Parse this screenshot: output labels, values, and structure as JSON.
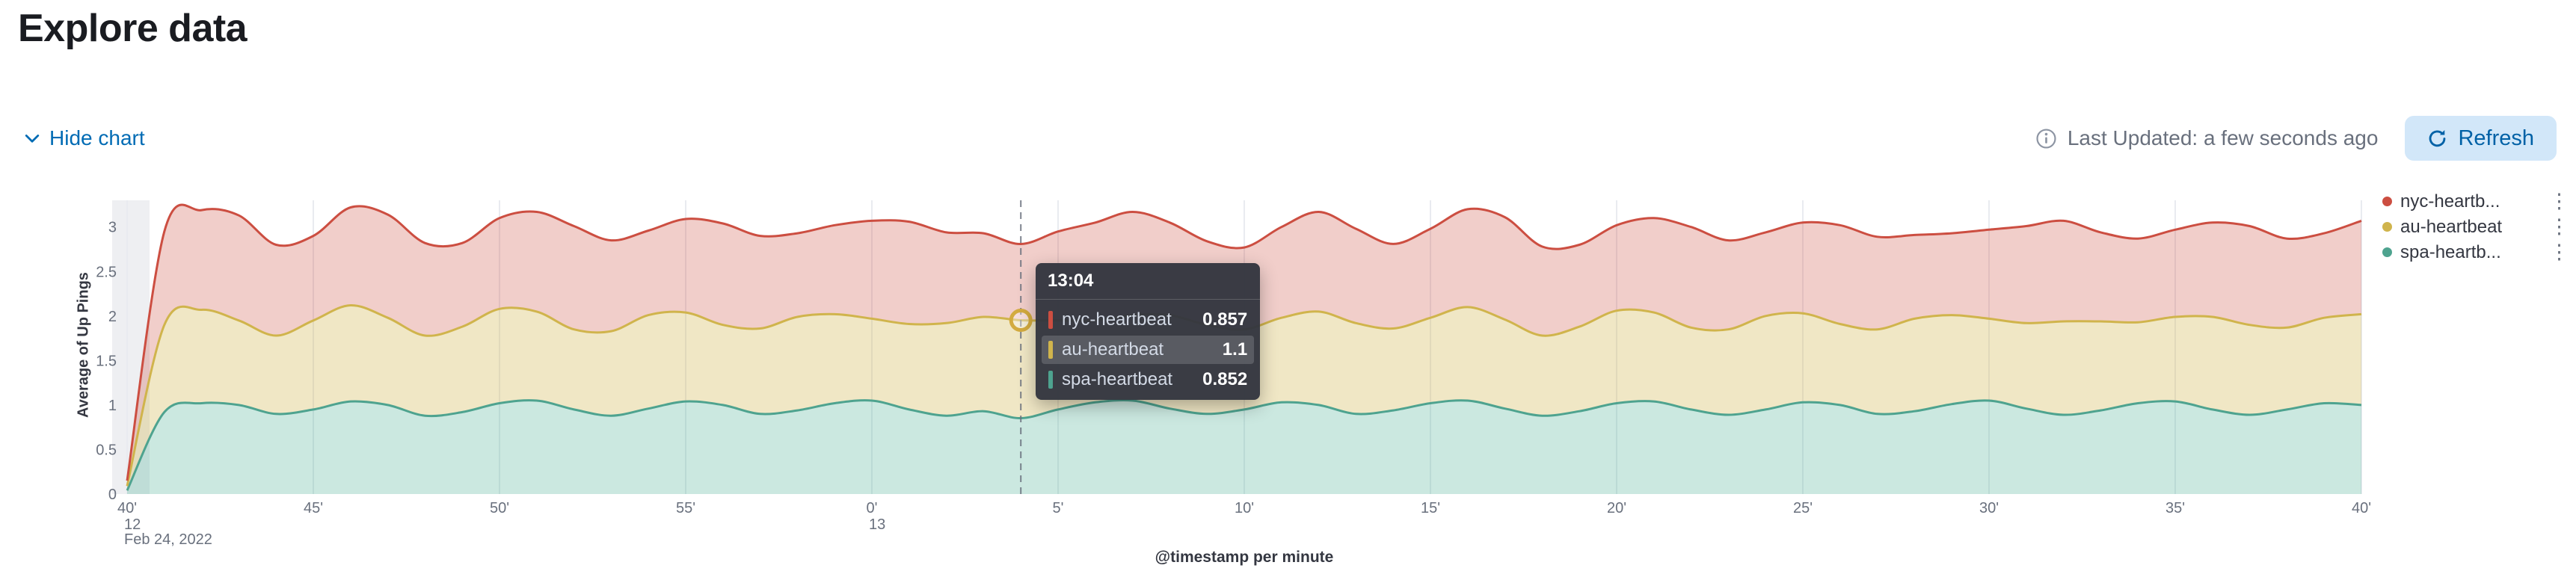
{
  "page": {
    "title": "Explore data"
  },
  "toolbar": {
    "hide_chart_label": "Hide chart",
    "last_updated": "Last Updated: a few seconds ago",
    "refresh_label": "Refresh"
  },
  "legend": {
    "menu_icon": "⋮",
    "items": [
      {
        "label": "nyc-heartb...",
        "color": "#cc4e41"
      },
      {
        "label": "au-heartbeat",
        "color": "#d0b44c"
      },
      {
        "label": "spa-heartb...",
        "color": "#4ea38f"
      }
    ]
  },
  "tooltip": {
    "header": "13:04",
    "rows": [
      {
        "label": "nyc-heartbeat",
        "value": "0.857",
        "color": "#cc4e41",
        "highlight": false
      },
      {
        "label": "au-heartbeat",
        "value": "1.1",
        "color": "#d0b44c",
        "highlight": true
      },
      {
        "label": "spa-heartbeat",
        "value": "0.852",
        "color": "#4ea38f",
        "highlight": false
      }
    ]
  },
  "chart_data": {
    "type": "area",
    "stacked": true,
    "xlabel": "@timestamp per minute",
    "ylabel": "Average of Up Pings",
    "x_start": "2022-02-24 12:40",
    "x_end": "2022-02-24 13:40",
    "ylim": [
      0,
      3.3
    ],
    "y_ticks": [
      0,
      0.5,
      1,
      1.5,
      2,
      2.5,
      3
    ],
    "y_tick_labels": [
      "0",
      "0.5",
      "1",
      "1.5",
      "2",
      "2.5",
      "3"
    ],
    "x_tick_minutes": [
      0,
      5,
      10,
      15,
      20,
      25,
      30,
      35,
      40,
      45,
      50,
      55,
      60
    ],
    "x_tick_labels": [
      "40'",
      "45'",
      "50'",
      "55'",
      "0'",
      "5'",
      "10'",
      "15'",
      "20'",
      "25'",
      "30'",
      "35'",
      "40'"
    ],
    "x_context_labels": [
      {
        "minute": 0,
        "lines": [
          "12",
          "Feb 24, 2022"
        ]
      },
      {
        "minute": 20,
        "lines": [
          "13"
        ]
      }
    ],
    "crosshair": {
      "minute": 24,
      "time": "13:04"
    },
    "marker": {
      "series": "au-heartbeat",
      "minute": 24
    },
    "series": [
      {
        "name": "spa-heartbeat",
        "color": "#4ea38f",
        "fill": "rgba(84,179,153,0.30)",
        "values": [
          0.04,
          0.92,
          1.02,
          1.0,
          0.9,
          0.95,
          1.04,
          1.0,
          0.88,
          0.92,
          1.02,
          1.05,
          0.95,
          0.88,
          0.96,
          1.04,
          1.0,
          0.9,
          0.94,
          1.02,
          1.05,
          0.95,
          0.88,
          0.93,
          0.852,
          0.95,
          1.03,
          1.05,
          0.96,
          0.9,
          0.95,
          1.03,
          1.0,
          0.9,
          0.94,
          1.02,
          1.05,
          0.96,
          0.88,
          0.93,
          1.02,
          1.04,
          0.95,
          0.89,
          0.95,
          1.03,
          1.0,
          0.9,
          0.93,
          1.01,
          1.05,
          0.96,
          0.89,
          0.94,
          1.02,
          1.04,
          0.95,
          0.89,
          0.95,
          1.02,
          1.0
        ]
      },
      {
        "name": "au-heartbeat",
        "color": "#d0b44c",
        "fill": "rgba(208,180,76,0.32)",
        "values": [
          0.05,
          0.98,
          1.05,
          0.95,
          0.88,
          1.0,
          1.08,
          0.98,
          0.9,
          0.96,
          1.06,
          1.0,
          0.9,
          0.95,
          1.05,
          1.0,
          0.9,
          0.96,
          1.05,
          1.0,
          0.92,
          0.96,
          1.04,
          1.06,
          1.1,
          1.0,
          0.92,
          0.96,
          1.05,
          1.0,
          0.9,
          0.95,
          1.05,
          1.02,
          0.92,
          0.96,
          1.05,
          1.0,
          0.9,
          0.95,
          1.04,
          1.0,
          0.92,
          0.96,
          1.05,
          1.0,
          0.91,
          0.95,
          1.04,
          1.0,
          0.92,
          0.96,
          1.05,
          1.0,
          0.91,
          0.95,
          1.04,
          1.01,
          0.92,
          0.96,
          1.02
        ]
      },
      {
        "name": "nyc-heartbeat",
        "color": "#cc4e41",
        "fill": "rgba(204,78,65,0.28)",
        "values": [
          0.06,
          1.05,
          1.12,
          1.18,
          1.02,
          0.95,
          1.1,
          1.16,
          1.04,
          0.94,
          1.02,
          1.12,
          1.16,
          1.02,
          0.95,
          1.05,
          1.14,
          1.04,
          0.94,
          1.0,
          1.1,
          1.15,
          1.02,
          0.94,
          0.857,
          1.0,
          1.1,
          1.16,
          1.04,
          0.94,
          0.92,
          1.02,
          1.12,
          1.06,
          0.95,
          1.0,
          1.1,
          1.15,
          1.0,
          0.92,
          0.96,
          1.06,
          1.13,
          1.0,
          0.94,
          1.02,
          1.11,
          1.04,
          0.94,
          0.92,
          1.0,
          1.09,
          1.13,
          1.0,
          0.94,
          0.98,
          1.06,
          1.11,
          1.0,
          0.95,
          1.05
        ]
      }
    ]
  }
}
